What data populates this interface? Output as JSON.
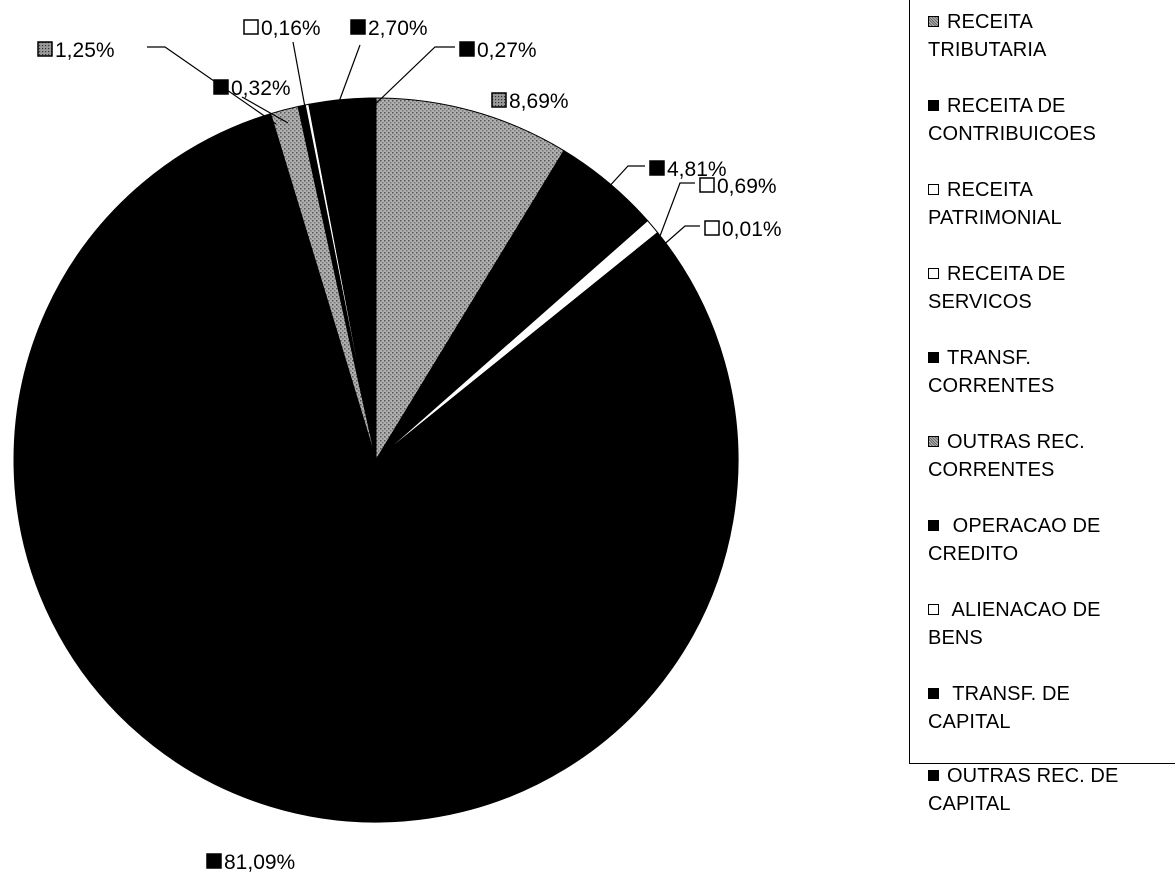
{
  "chart_data": {
    "type": "pie",
    "title": "",
    "legend_position": "right",
    "slices": [
      {
        "category": "RECEITA TRIBUTARIA",
        "value": 8.69,
        "label": "8,69%",
        "fill": "#9a9a9a",
        "pattern": "dots",
        "swatch_fill": "#8c8c8c"
      },
      {
        "category": "RECEITA DE CONTRIBUICOES",
        "value": 4.81,
        "label": "4,81%",
        "fill": "#000000",
        "pattern": "",
        "swatch_fill": "#000000"
      },
      {
        "category": "RECEITA PATRIMONIAL",
        "value": 0.69,
        "label": "0,69%",
        "fill": "#ffffff",
        "pattern": "",
        "swatch_fill": "#ffffff"
      },
      {
        "category": "RECEITA DE SERVICOS",
        "value": 0.01,
        "label": "0,01%",
        "fill": "#ffffff",
        "pattern": "",
        "swatch_fill": "#ffffff"
      },
      {
        "category": "TRANSF. CORRENTES",
        "value": 81.09,
        "label": "81,09%",
        "fill": "#000000",
        "pattern": "",
        "swatch_fill": "#000000"
      },
      {
        "category": "OUTRAS REC. CORRENTES",
        "value": 1.25,
        "label": "1,25%",
        "fill": "#a8a8a8",
        "pattern": "dots",
        "swatch_fill": "#8c8c8c"
      },
      {
        "category": "OPERACAO DE CREDITO",
        "value": 0.32,
        "label": "0,32%",
        "fill": "#000000",
        "pattern": "",
        "swatch_fill": "#000000"
      },
      {
        "category": "ALIENACAO DE BENS",
        "value": 0.16,
        "label": "0,16%",
        "fill": "#ffffff",
        "pattern": "",
        "swatch_fill": "#ffffff"
      },
      {
        "category": "TRANSF. DE CAPITAL",
        "value": 2.7,
        "label": "2,70%",
        "fill": "#000000",
        "pattern": "",
        "swatch_fill": "#000000"
      },
      {
        "category": "OUTRAS REC. DE CAPITAL",
        "value": 0.27,
        "label": "0,27%",
        "fill": "#000000",
        "pattern": "",
        "swatch_fill": "#000000"
      }
    ]
  },
  "legend": {
    "items": [
      {
        "line1": "RECEITA",
        "line2": "TRIBUTARIA"
      },
      {
        "line1": "RECEITA DE",
        "line2": "CONTRIBUICOES"
      },
      {
        "line1": "RECEITA",
        "line2": "PATRIMONIAL"
      },
      {
        "line1": "RECEITA DE",
        "line2": "SERVICOS"
      },
      {
        "line1": "TRANSF.",
        "line2": "CORRENTES"
      },
      {
        "line1": "OUTRAS REC.",
        "line2": "CORRENTES"
      },
      {
        "line1": " OPERACAO DE",
        "line2": "CREDITO"
      },
      {
        "line1": " ALIENACAO DE",
        "line2": "BENS"
      },
      {
        "line1": " TRANSF. DE",
        "line2": "CAPITAL"
      },
      {
        "line1": "OUTRAS REC. DE",
        "line2": "CAPITAL"
      }
    ]
  }
}
